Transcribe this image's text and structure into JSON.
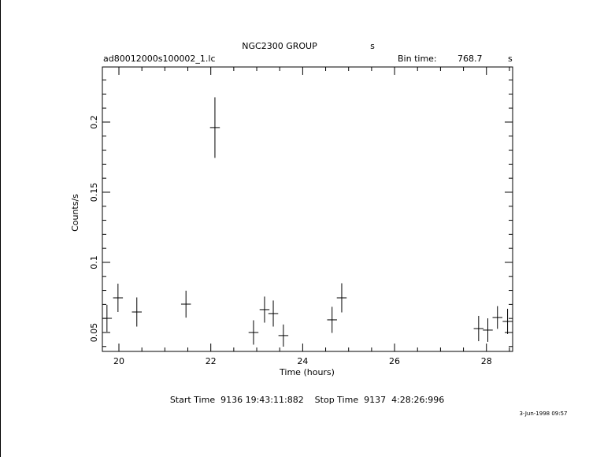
{
  "chart_data": {
    "type": "errorbar",
    "title": "NGC2300 GROUP",
    "title_suffix": "s",
    "file_name": "ad80012000s100002_1.lc",
    "bin_time_label": "Bin time:",
    "bin_time": 768.7,
    "bin_time_unit": "s",
    "x_label": "Time (hours)",
    "y_label": "Counts/s",
    "footer": "Start Time  9136 19:43:11:882    Stop Time  9137  4:28:26:996",
    "date_stamp": "3-Jun-1998 09:57",
    "color": "#000000",
    "x": [
      19.74,
      19.98,
      20.39,
      21.46,
      22.09,
      22.93,
      23.17,
      23.36,
      23.58,
      24.64,
      24.85,
      27.83,
      28.03,
      28.24,
      28.46
    ],
    "x_errors": [
      0.107,
      0.107,
      0.107,
      0.107,
      0.107,
      0.107,
      0.107,
      0.107,
      0.107,
      0.107,
      0.107,
      0.107,
      0.107,
      0.107,
      0.107
    ],
    "values": [
      0.0601,
      0.0747,
      0.0646,
      0.0702,
      0.1961,
      0.05,
      0.0663,
      0.0635,
      0.0478,
      0.059,
      0.0747,
      0.0528,
      0.0517,
      0.0607,
      0.0579
    ],
    "errors": [
      0.0096,
      0.0101,
      0.0104,
      0.0096,
      0.0216,
      0.0087,
      0.0093,
      0.0093,
      0.0079,
      0.0093,
      0.0104,
      0.009,
      0.0084,
      0.0081,
      0.009
    ],
    "xlim": [
      19.64,
      28.57
    ],
    "ylim": [
      0.0365,
      0.2393
    ],
    "xticks": [
      20,
      22,
      24,
      26,
      28
    ],
    "yticks": [
      0.05,
      0.1,
      0.15,
      0.2
    ],
    "x_minor_ticks": [
      20.5,
      21,
      21.5,
      22.5,
      23,
      23.5,
      24.5,
      25,
      25.5,
      26.5,
      27,
      27.5,
      28.5
    ],
    "y_minor_ticks": [
      0.04,
      0.06,
      0.07,
      0.08,
      0.09,
      0.11,
      0.12,
      0.13,
      0.14,
      0.16,
      0.17,
      0.18,
      0.19,
      0.21,
      0.22,
      0.23
    ]
  }
}
